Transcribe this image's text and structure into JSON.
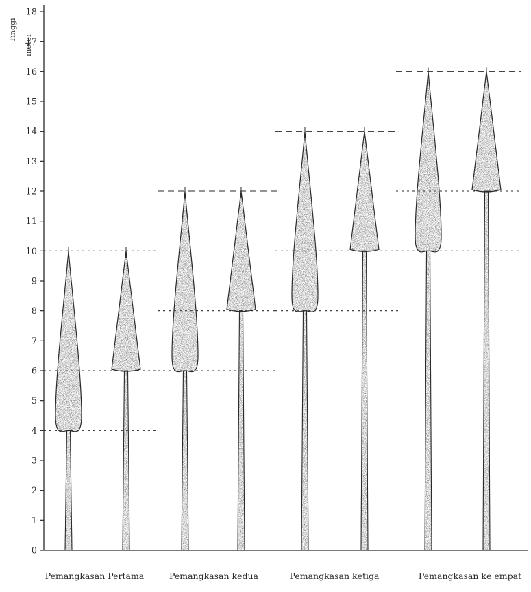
{
  "axis": {
    "label": "Tinggi",
    "unit": "meter",
    "min": 0,
    "max": 18,
    "ticks": [
      "0",
      "1",
      "2",
      "3",
      "4",
      "5",
      "6",
      "7",
      "8",
      "9",
      "10",
      "11",
      "12",
      "13",
      "14",
      "15",
      "16",
      "17",
      "18"
    ]
  },
  "colors": {
    "ink": "#2a2a2a",
    "stipple": "#5a5a5a",
    "fill": "#cfcfcf"
  },
  "groups": [
    {
      "caption": "Pemangkasan Pertama",
      "trees": [
        {
          "shape": "teardrop",
          "crown_base": 4,
          "crown_wide": 5,
          "top": 10
        },
        {
          "shape": "cone",
          "crown_base": 6,
          "crown_wide": 6,
          "top": 10
        }
      ],
      "guides": [
        {
          "height": 10,
          "style": "dot"
        },
        {
          "height": 6,
          "style": "dot"
        },
        {
          "height": 4,
          "style": "dot"
        }
      ]
    },
    {
      "caption": "Pemangkasan kedua",
      "trees": [
        {
          "shape": "teardrop",
          "crown_base": 6,
          "crown_wide": 7,
          "top": 12
        },
        {
          "shape": "cone",
          "crown_base": 8,
          "crown_wide": 8,
          "top": 12
        }
      ],
      "guides": [
        {
          "height": 12,
          "style": "dash"
        },
        {
          "height": 8,
          "style": "dot"
        },
        {
          "height": 6,
          "style": "dot"
        }
      ]
    },
    {
      "caption": "Pemangkasan ketiga",
      "trees": [
        {
          "shape": "teardrop",
          "crown_base": 8,
          "crown_wide": 9,
          "top": 14
        },
        {
          "shape": "cone",
          "crown_base": 10,
          "crown_wide": 10,
          "top": 14
        }
      ],
      "guides": [
        {
          "height": 14,
          "style": "dash"
        },
        {
          "height": 10,
          "style": "dot"
        },
        {
          "height": 8,
          "style": "dot"
        }
      ]
    },
    {
      "caption": "Pemangkasan ke empat",
      "trees": [
        {
          "shape": "teardrop",
          "crown_base": 10,
          "crown_wide": 11,
          "top": 16
        },
        {
          "shape": "cone",
          "crown_base": 12,
          "crown_wide": 12,
          "top": 16
        }
      ],
      "guides": [
        {
          "height": 16,
          "style": "dash"
        },
        {
          "height": 12,
          "style": "dot"
        },
        {
          "height": 10,
          "style": "dot"
        }
      ]
    }
  ]
}
